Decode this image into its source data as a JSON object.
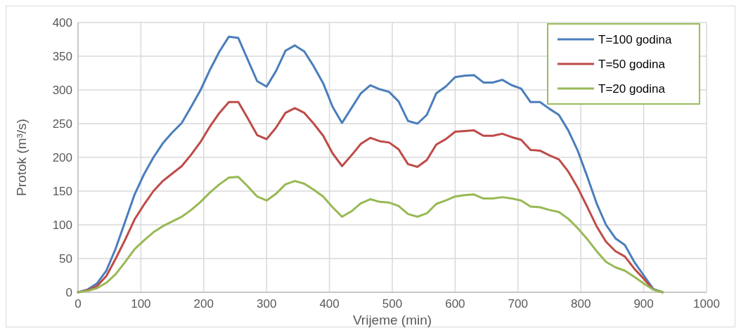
{
  "chart_data": {
    "type": "line",
    "xlabel": "Vrijeme (min)",
    "ylabel": "Protok (m³/s)",
    "xlim": [
      0,
      1000
    ],
    "xticks": [
      0,
      100,
      200,
      300,
      400,
      500,
      600,
      700,
      800,
      900,
      1000
    ],
    "ylim": [
      0,
      400
    ],
    "yticks": [
      0,
      50,
      100,
      150,
      200,
      250,
      300,
      350,
      400
    ],
    "grid": true,
    "legend": "top right",
    "marker": "none",
    "line_style": "solid",
    "x": [
      0,
      15,
      30,
      45,
      60,
      75,
      90,
      105,
      120,
      135,
      150,
      165,
      180,
      195,
      210,
      225,
      240,
      255,
      270,
      285,
      300,
      315,
      330,
      345,
      360,
      375,
      390,
      405,
      420,
      435,
      450,
      465,
      480,
      495,
      510,
      525,
      540,
      555,
      570,
      585,
      600,
      615,
      630,
      645,
      660,
      675,
      690,
      705,
      720,
      735,
      750,
      765,
      780,
      795,
      810,
      825,
      840,
      855,
      870,
      885,
      900,
      915,
      930
    ],
    "series": [
      {
        "name": "T=100 godina",
        "color": "#4a7ebb",
        "values": [
          0,
          4,
          13,
          32,
          65,
          105,
          145,
          175,
          200,
          221,
          237,
          251,
          275,
          300,
          330,
          357,
          379,
          377,
          345,
          313,
          305,
          328,
          358,
          366,
          357,
          335,
          310,
          275,
          251,
          273,
          295,
          307,
          301,
          297,
          283,
          254,
          250,
          263,
          295,
          305,
          319,
          321,
          322,
          311,
          311,
          315,
          307,
          302,
          282,
          282,
          272,
          263,
          240,
          210,
          172,
          132,
          100,
          80,
          70,
          45,
          25,
          5,
          0
        ]
      },
      {
        "name": "T=50 godina",
        "color": "#be4b48",
        "values": [
          0,
          3,
          9,
          24,
          50,
          78,
          108,
          130,
          150,
          165,
          176,
          187,
          204,
          223,
          246,
          266,
          282,
          282,
          258,
          233,
          227,
          244,
          266,
          273,
          266,
          250,
          232,
          206,
          187,
          203,
          220,
          229,
          224,
          222,
          212,
          190,
          186,
          196,
          219,
          227,
          238,
          239,
          240,
          232,
          232,
          235,
          230,
          226,
          211,
          210,
          203,
          197,
          179,
          155,
          127,
          98,
          75,
          61,
          53,
          35,
          20,
          4,
          0
        ]
      },
      {
        "name": "T=20 godina",
        "color": "#98b954",
        "values": [
          0,
          2,
          6,
          14,
          27,
          45,
          64,
          77,
          89,
          98,
          105,
          112,
          122,
          134,
          148,
          160,
          170,
          171,
          157,
          142,
          136,
          146,
          160,
          165,
          161,
          152,
          142,
          126,
          112,
          120,
          132,
          138,
          134,
          133,
          128,
          116,
          112,
          117,
          131,
          136,
          142,
          144,
          145,
          139,
          139,
          141,
          139,
          136,
          127,
          126,
          122,
          119,
          109,
          95,
          79,
          61,
          45,
          37,
          32,
          23,
          13,
          4,
          0
        ]
      }
    ]
  }
}
